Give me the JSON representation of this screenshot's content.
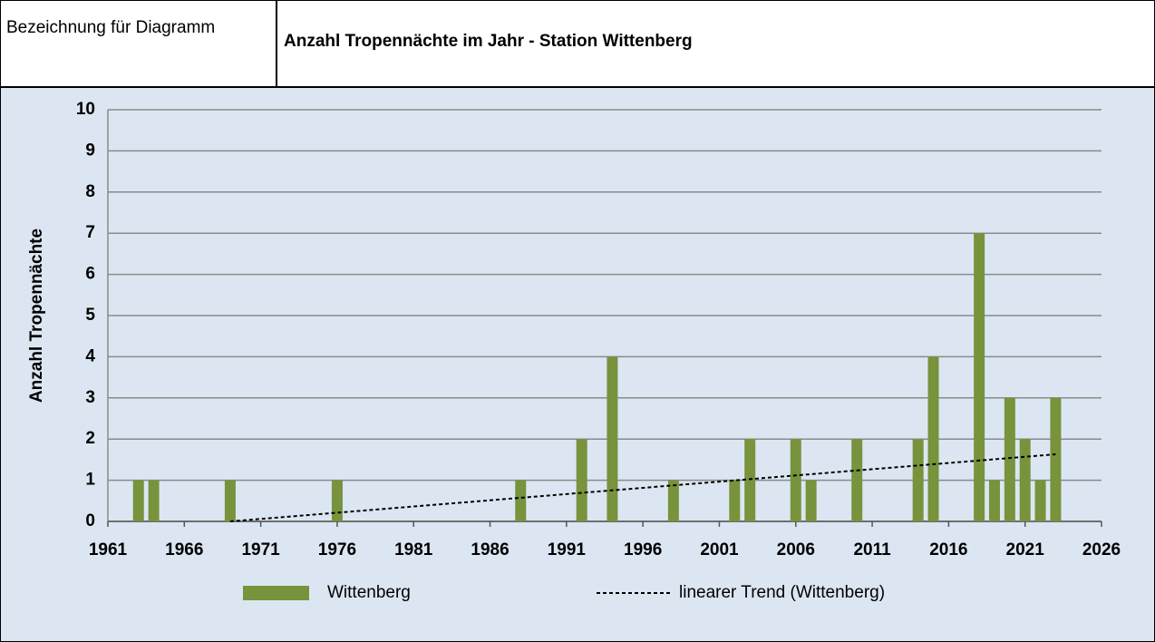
{
  "header": {
    "label": "Bezeichnung für Diagramm"
  },
  "chart_data": {
    "type": "bar",
    "title": "Anzahl Tropennächte im Jahr - Station Wittenberg",
    "y_label": "Anzahl Tropennächte",
    "xlim": [
      1961,
      2026
    ],
    "xticks": [
      1961,
      1966,
      1971,
      1976,
      1981,
      1986,
      1991,
      1996,
      2001,
      2006,
      2011,
      2016,
      2021,
      2026
    ],
    "ylim": [
      0,
      10
    ],
    "yticks": [
      0,
      1,
      2,
      3,
      4,
      5,
      6,
      7,
      8,
      9,
      10
    ],
    "grid": true,
    "legend": "bottom",
    "series": [
      {
        "name": "Wittenberg",
        "type": "bar",
        "color": "#77933c",
        "x": [
          1963,
          1964,
          1969,
          1976,
          1988,
          1992,
          1994,
          1998,
          2002,
          2003,
          2006,
          2007,
          2010,
          2014,
          2015,
          2018,
          2019,
          2020,
          2021,
          2022,
          2023
        ],
        "values": [
          1,
          1,
          1,
          1,
          1,
          2,
          4,
          1,
          1,
          2,
          2,
          1,
          2,
          2,
          4,
          7,
          1,
          3,
          2,
          1,
          3
        ]
      },
      {
        "name": "linearer Trend (Wittenberg)",
        "type": "line",
        "color": "#000000",
        "dashed": true,
        "x": [
          1969,
          2023
        ],
        "values": [
          0,
          1.63
        ]
      }
    ]
  }
}
